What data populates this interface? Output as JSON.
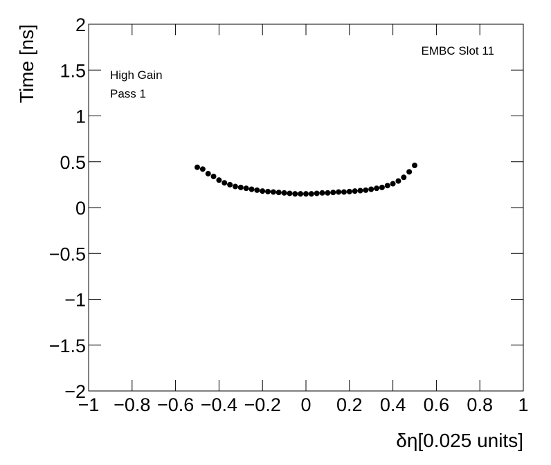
{
  "chart_data": {
    "type": "scatter",
    "x_label": "δη[0.025 units]",
    "y_label": "Time [ns]",
    "annotations": [
      "EMBC Slot 11",
      "High Gain",
      "Pass 1"
    ],
    "color": "#000000",
    "xlim": [
      -1,
      1
    ],
    "ylim": [
      -2,
      2
    ],
    "xticks": [
      {
        "value": -1,
        "label": "−1"
      },
      {
        "value": -0.8,
        "label": "−0.8"
      },
      {
        "value": -0.6,
        "label": "−0.6"
      },
      {
        "value": -0.4,
        "label": "−0.4"
      },
      {
        "value": -0.2,
        "label": "−0.2"
      },
      0,
      0.2,
      0.4,
      0.6,
      0.8,
      1
    ],
    "yticks": [
      {
        "value": -2,
        "label": "−2"
      },
      {
        "value": -1.5,
        "label": "−1.5"
      },
      {
        "value": -1,
        "label": "−1"
      },
      {
        "value": -0.5,
        "label": "−0.5"
      },
      0,
      0.5,
      1,
      1.5,
      2
    ],
    "x": [
      -0.5,
      -0.475,
      -0.45,
      -0.425,
      -0.4,
      -0.375,
      -0.35,
      -0.325,
      -0.3,
      -0.275,
      -0.25,
      -0.225,
      -0.2,
      -0.175,
      -0.15,
      -0.125,
      -0.1,
      -0.075,
      -0.05,
      -0.025,
      0,
      0.025,
      0.05,
      0.075,
      0.1,
      0.125,
      0.15,
      0.175,
      0.2,
      0.225,
      0.25,
      0.275,
      0.3,
      0.325,
      0.35,
      0.375,
      0.4,
      0.425,
      0.45,
      0.475,
      0.5
    ],
    "values": [
      0.44,
      0.42,
      0.37,
      0.34,
      0.3,
      0.27,
      0.25,
      0.23,
      0.22,
      0.21,
      0.2,
      0.19,
      0.18,
      0.175,
      0.17,
      0.165,
      0.16,
      0.155,
      0.15,
      0.15,
      0.15,
      0.15,
      0.155,
      0.16,
      0.16,
      0.165,
      0.17,
      0.17,
      0.175,
      0.18,
      0.185,
      0.19,
      0.2,
      0.21,
      0.22,
      0.24,
      0.26,
      0.29,
      0.33,
      0.39,
      0.46
    ]
  }
}
